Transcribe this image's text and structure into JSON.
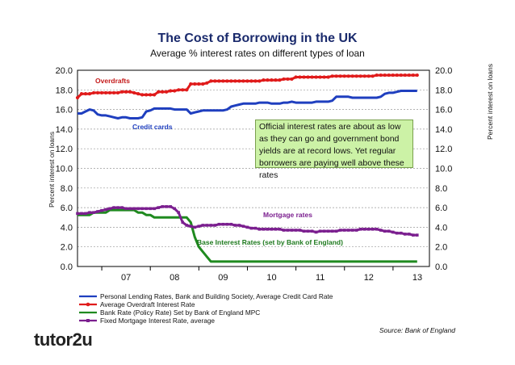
{
  "chart_data": {
    "type": "line",
    "title": "The Cost of Borrowing in the UK",
    "subtitle": "Average % interest rates on different types of loan",
    "ylabel_left": "Percent interest on loans",
    "ylabel_right": "Percent interest on loans",
    "ylim": [
      0,
      20
    ],
    "y_ticks": [
      "0.0",
      "2.0",
      "4.0",
      "6.0",
      "8.0",
      "10.0",
      "12.0",
      "14.0",
      "16.0",
      "18.0",
      "20.0"
    ],
    "x_ticks": [
      "07",
      "08",
      "09",
      "10",
      "11",
      "12",
      "13"
    ],
    "xlim": [
      2006.5,
      2013.75
    ],
    "grid": true,
    "x_start": 2006.5,
    "x_step": 0.0833,
    "series": [
      {
        "name": "Personal Lending Rates, Bank and Building Society, Average Credit Card Rate",
        "label": "Credit cards",
        "color": "#1f3fbf",
        "marker": "none",
        "values": [
          15.6,
          15.6,
          15.8,
          16.0,
          15.9,
          15.5,
          15.4,
          15.4,
          15.3,
          15.2,
          15.1,
          15.2,
          15.2,
          15.1,
          15.1,
          15.1,
          15.2,
          15.8,
          15.9,
          16.1,
          16.1,
          16.1,
          16.1,
          16.1,
          16.0,
          16.0,
          16.0,
          16.0,
          15.6,
          15.7,
          15.8,
          15.9,
          15.9,
          15.9,
          15.9,
          15.9,
          15.9,
          16.0,
          16.3,
          16.4,
          16.5,
          16.6,
          16.6,
          16.6,
          16.6,
          16.7,
          16.7,
          16.7,
          16.6,
          16.6,
          16.6,
          16.7,
          16.7,
          16.8,
          16.7,
          16.7,
          16.7,
          16.7,
          16.7,
          16.8,
          16.8,
          16.8,
          16.8,
          16.9,
          17.3,
          17.3,
          17.3,
          17.3,
          17.2,
          17.2,
          17.2,
          17.2,
          17.2,
          17.2,
          17.2,
          17.3,
          17.6,
          17.7,
          17.7,
          17.8,
          17.9,
          17.9,
          17.9,
          17.9,
          17.9
        ]
      },
      {
        "name": "Average Overdraft Interest Rate",
        "label": "Overdrafts",
        "color": "#e01b1b",
        "marker": "circle",
        "values": [
          17.2,
          17.6,
          17.6,
          17.6,
          17.7,
          17.7,
          17.7,
          17.7,
          17.7,
          17.7,
          17.7,
          17.8,
          17.8,
          17.8,
          17.7,
          17.6,
          17.5,
          17.5,
          17.5,
          17.5,
          17.8,
          17.8,
          17.8,
          17.9,
          17.9,
          18.0,
          18.0,
          18.0,
          18.6,
          18.6,
          18.6,
          18.6,
          18.7,
          18.9,
          18.9,
          18.9,
          18.9,
          18.9,
          18.9,
          18.9,
          18.9,
          18.9,
          18.9,
          18.9,
          18.9,
          18.9,
          19.0,
          19.0,
          19.0,
          19.0,
          19.0,
          19.1,
          19.1,
          19.1,
          19.3,
          19.3,
          19.3,
          19.3,
          19.3,
          19.3,
          19.3,
          19.3,
          19.3,
          19.4,
          19.4,
          19.4,
          19.4,
          19.4,
          19.4,
          19.4,
          19.4,
          19.4,
          19.4,
          19.4,
          19.5,
          19.5,
          19.5,
          19.5,
          19.5,
          19.5,
          19.5,
          19.5,
          19.5,
          19.5,
          19.5
        ]
      },
      {
        "name": "Bank Rate (Policy Rate) Set by Bank of England MPC",
        "label": "Base Interest Rates (set by Bank of England)",
        "color": "#1f8a1f",
        "marker": "none",
        "values": [
          5.25,
          5.25,
          5.25,
          5.25,
          5.5,
          5.5,
          5.5,
          5.5,
          5.75,
          5.75,
          5.75,
          5.75,
          5.75,
          5.75,
          5.75,
          5.5,
          5.5,
          5.25,
          5.25,
          5.0,
          5.0,
          5.0,
          5.0,
          5.0,
          5.0,
          5.0,
          5.0,
          5.0,
          4.5,
          3.0,
          2.0,
          1.5,
          1.0,
          0.5,
          0.5,
          0.5,
          0.5,
          0.5,
          0.5,
          0.5,
          0.5,
          0.5,
          0.5,
          0.5,
          0.5,
          0.5,
          0.5,
          0.5,
          0.5,
          0.5,
          0.5,
          0.5,
          0.5,
          0.5,
          0.5,
          0.5,
          0.5,
          0.5,
          0.5,
          0.5,
          0.5,
          0.5,
          0.5,
          0.5,
          0.5,
          0.5,
          0.5,
          0.5,
          0.5,
          0.5,
          0.5,
          0.5,
          0.5,
          0.5,
          0.5,
          0.5,
          0.5,
          0.5,
          0.5,
          0.5,
          0.5,
          0.5,
          0.5,
          0.5,
          0.5
        ]
      },
      {
        "name": "Fixed Mortgage Interest Rate, average",
        "label": "Mortgage rates",
        "color": "#7b1f8f",
        "marker": "square",
        "values": [
          5.4,
          5.4,
          5.4,
          5.5,
          5.5,
          5.6,
          5.7,
          5.8,
          5.9,
          6.0,
          6.0,
          6.0,
          5.9,
          5.9,
          5.9,
          5.9,
          5.9,
          5.9,
          5.9,
          5.9,
          6.0,
          6.1,
          6.1,
          6.1,
          5.9,
          5.5,
          4.5,
          4.2,
          4.1,
          4.0,
          4.1,
          4.2,
          4.2,
          4.2,
          4.2,
          4.3,
          4.3,
          4.3,
          4.3,
          4.2,
          4.2,
          4.1,
          4.0,
          3.9,
          3.9,
          3.8,
          3.8,
          3.8,
          3.8,
          3.8,
          3.8,
          3.7,
          3.7,
          3.7,
          3.7,
          3.7,
          3.6,
          3.6,
          3.6,
          3.5,
          3.6,
          3.6,
          3.6,
          3.6,
          3.6,
          3.7,
          3.7,
          3.7,
          3.7,
          3.7,
          3.8,
          3.8,
          3.8,
          3.8,
          3.8,
          3.7,
          3.6,
          3.6,
          3.5,
          3.4,
          3.4,
          3.3,
          3.3,
          3.2,
          3.2
        ]
      }
    ],
    "legend_position": "bottom-left"
  },
  "annotation": "Official interest rates are about as low as they can go and government bond yields are at record lows. Yet regular borrowers are paying well above these rates",
  "source": "Source: Bank of England",
  "logo": "tutor2u"
}
